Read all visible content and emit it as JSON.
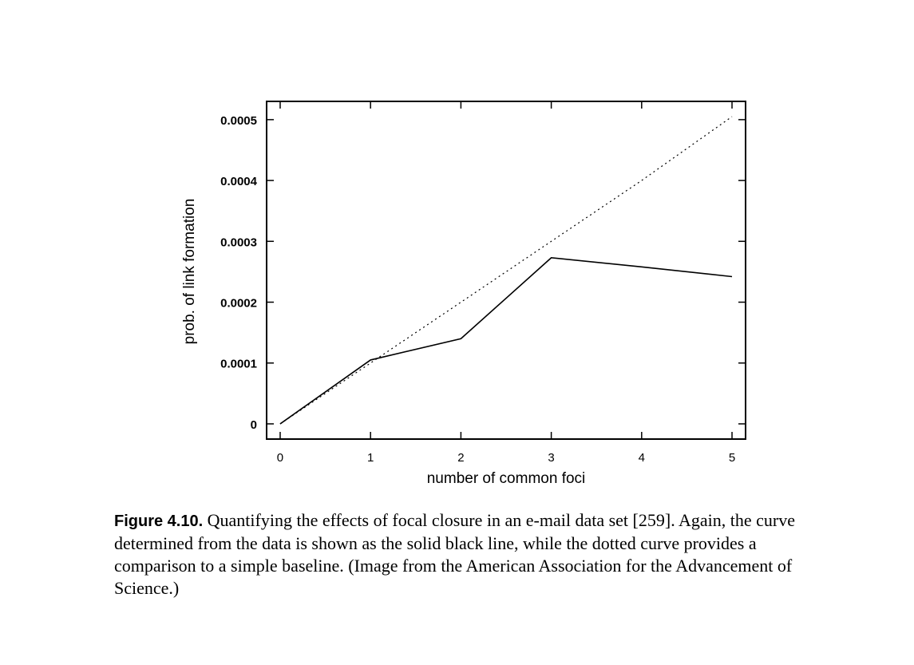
{
  "chart_data": {
    "type": "line",
    "xlabel": "number of common foci",
    "ylabel": "prob. of link formation",
    "x": [
      0,
      1,
      2,
      3,
      4,
      5
    ],
    "xlim": [
      -0.15,
      5.15
    ],
    "ylim": [
      -2.5e-05,
      0.00053
    ],
    "xticks": [
      0,
      1,
      2,
      3,
      4,
      5
    ],
    "xtick_labels": [
      "0",
      "1",
      "2",
      "3",
      "4",
      "5"
    ],
    "yticks": [
      0,
      0.0001,
      0.0002,
      0.0003,
      0.0004,
      0.0005
    ],
    "ytick_labels": [
      "0",
      "0.0001",
      "0.0002",
      "0.0003",
      "0.0004",
      "0.0005"
    ],
    "grid": false,
    "series": [
      {
        "style": "solid",
        "color": "#000000",
        "values": [
          0,
          0.000105,
          0.00014,
          0.000273,
          0.000258,
          0.000242
        ]
      },
      {
        "style": "dotted",
        "color": "#000000",
        "values": [
          0,
          0.0001,
          0.0002,
          0.0003,
          0.0004,
          0.000505
        ]
      }
    ]
  },
  "caption": {
    "label": "Figure 4.10.",
    "text": " Quantifying the effects of focal closure in an e-mail data set [259]. Again, the curve determined from the data is shown as the solid black line, while the dotted curve provides a comparison to a simple baseline. (Image from the American Association for the Advancement of Science.)"
  }
}
